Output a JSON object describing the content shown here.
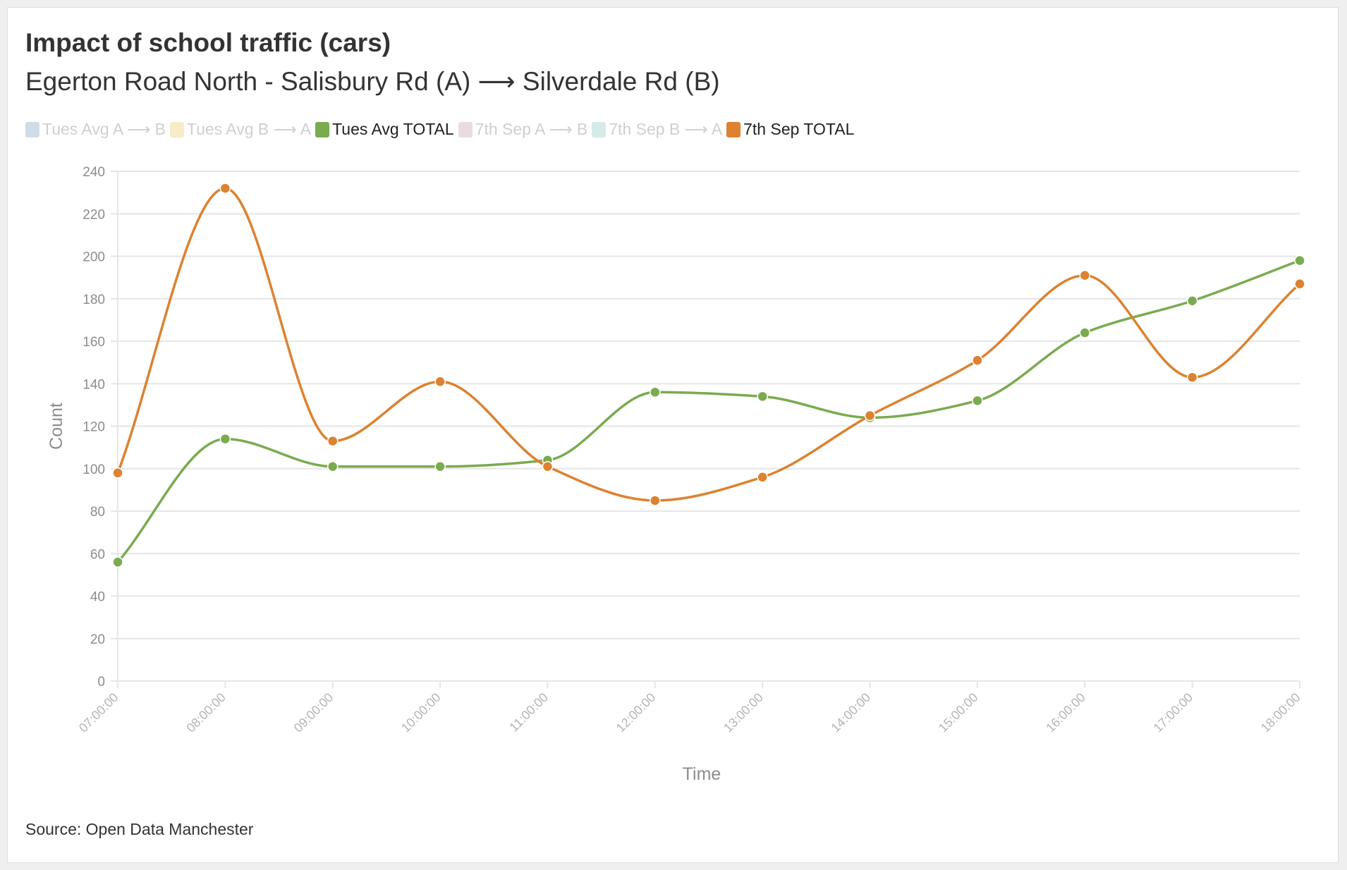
{
  "header": {
    "title": "Impact of school traffic (cars)",
    "subtitle": "Egerton Road North - Salisbury Rd (A) ⟶ Silverdale Rd (B)"
  },
  "legend": [
    {
      "label": "Tues Avg A ⟶ B",
      "color": "#cfdde9",
      "active": false
    },
    {
      "label": "Tues Avg B ⟶ A",
      "color": "#f7ebc9",
      "active": false
    },
    {
      "label": "Tues Avg TOTAL",
      "color": "#7aab4f",
      "active": true
    },
    {
      "label": "7th Sep A ⟶ B",
      "color": "#eadbe2",
      "active": false
    },
    {
      "label": "7th Sep B ⟶ A",
      "color": "#d5ebea",
      "active": false
    },
    {
      "label": "7th Sep TOTAL",
      "color": "#dc8230",
      "active": true
    }
  ],
  "chart_data": {
    "type": "line",
    "xlabel": "Time",
    "ylabel": "Count",
    "ylim": [
      0,
      240
    ],
    "yticks": [
      0,
      20,
      40,
      60,
      80,
      100,
      120,
      140,
      160,
      180,
      200,
      220,
      240
    ],
    "grid": true,
    "smooth": true,
    "legend_position": "top-left",
    "x": [
      "07:00:00",
      "08:00:00",
      "09:00:00",
      "10:00:00",
      "11:00:00",
      "12:00:00",
      "13:00:00",
      "14:00:00",
      "15:00:00",
      "16:00:00",
      "17:00:00",
      "18:00:00"
    ],
    "series": [
      {
        "name": "Tues Avg TOTAL",
        "color": "#7aab4f",
        "values": [
          56,
          114,
          101,
          101,
          104,
          136,
          134,
          124,
          132,
          164,
          179,
          198
        ]
      },
      {
        "name": "7th Sep TOTAL",
        "color": "#dc8230",
        "values": [
          98,
          232,
          113,
          141,
          101,
          85,
          96,
          125,
          151,
          191,
          143,
          187
        ]
      }
    ]
  },
  "footer": {
    "source": "Source: Open Data Manchester"
  }
}
